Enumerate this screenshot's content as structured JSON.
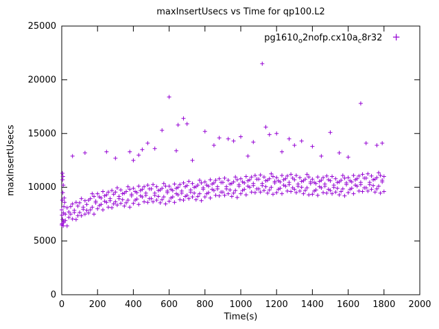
{
  "page": {
    "background": "#ffffff"
  },
  "title": "maxInsertUsecs vs Time for qp100.L2",
  "legend": {
    "label_full": "pg1610_o2nofp.cx10a_c8r32",
    "parts": [
      "pg1610",
      "o",
      "2nofp.cx10a",
      "c",
      "8r32"
    ],
    "marker": "+",
    "color": "#9400d3"
  },
  "axes": {
    "x": {
      "label": "Time(s)",
      "min": 0,
      "max": 2000,
      "ticks": [
        0,
        200,
        400,
        600,
        800,
        1000,
        1200,
        1400,
        1600,
        1800,
        2000
      ]
    },
    "y": {
      "label": "maxInsertUsecs",
      "min": 0,
      "max": 25000,
      "ticks": [
        0,
        5000,
        10000,
        15000,
        20000,
        25000
      ]
    }
  },
  "chart_data": {
    "type": "scatter",
    "title": "maxInsertUsecs vs Time for qp100.L2",
    "xlabel": "Time(s)",
    "ylabel": "maxInsertUsecs",
    "xlim": [
      0,
      2000
    ],
    "ylim": [
      0,
      25000
    ],
    "legend_label": "pg1610_o2nofp.cx10a_c8r32",
    "marker": "plus",
    "color": "#9400d3",
    "points_xyy": [
      [
        0,
        6500,
        7900
      ],
      [
        10,
        7600,
        6800
      ],
      [
        20,
        6900,
        7500
      ],
      [
        30,
        8100,
        6400
      ],
      [
        40,
        7200,
        7700
      ],
      [
        50,
        8200,
        7500
      ],
      [
        60,
        7050,
        8450
      ],
      [
        70,
        7850,
        7650
      ],
      [
        80,
        8600,
        7000
      ],
      [
        90,
        7350,
        8250
      ],
      [
        100,
        8550,
        7650
      ],
      [
        110,
        7350,
        8950
      ],
      [
        120,
        8150,
        7950
      ],
      [
        130,
        8750,
        7500
      ],
      [
        140,
        7850,
        8400
      ],
      [
        150,
        8800,
        7600
      ],
      [
        160,
        7900,
        8950
      ],
      [
        170,
        9400,
        8150
      ],
      [
        180,
        7500,
        9150
      ],
      [
        190,
        8700,
        8550
      ],
      [
        200,
        8000,
        9400
      ],
      [
        210,
        9100,
        8300
      ],
      [
        220,
        8400,
        9000
      ],
      [
        230,
        9600,
        7900
      ],
      [
        240,
        8700,
        9200
      ],
      [
        250,
        9300,
        8600
      ],
      [
        260,
        8150,
        9550
      ],
      [
        270,
        8950,
        8750
      ],
      [
        280,
        9700,
        8100
      ],
      [
        290,
        8450,
        9350
      ],
      [
        300,
        9550,
        8650
      ],
      [
        310,
        8350,
        9950
      ],
      [
        320,
        9150,
        8950
      ],
      [
        330,
        9750,
        8500
      ],
      [
        340,
        8850,
        9400
      ],
      [
        350,
        9450,
        8250
      ],
      [
        360,
        8550,
        9600
      ],
      [
        370,
        10050,
        8800
      ],
      [
        380,
        8150,
        9800
      ],
      [
        390,
        9350,
        9200
      ],
      [
        400,
        8500,
        9900
      ],
      [
        410,
        9600,
        8800
      ],
      [
        420,
        8900,
        9500
      ],
      [
        430,
        10100,
        8400
      ],
      [
        440,
        9200,
        9700
      ],
      [
        450,
        9800,
        9100
      ],
      [
        460,
        8650,
        10050
      ],
      [
        470,
        9450,
        9250
      ],
      [
        480,
        10200,
        8600
      ],
      [
        490,
        8950,
        9850
      ],
      [
        500,
        9850,
        8950
      ],
      [
        510,
        8650,
        10250
      ],
      [
        520,
        9450,
        9250
      ],
      [
        530,
        10050,
        8800
      ],
      [
        540,
        9150,
        9700
      ],
      [
        550,
        9750,
        8550
      ],
      [
        560,
        8850,
        9900
      ],
      [
        570,
        10350,
        9100
      ],
      [
        580,
        8450,
        10100
      ],
      [
        590,
        9650,
        9500
      ],
      [
        600,
        8700,
        10100
      ],
      [
        610,
        9800,
        9000
      ],
      [
        620,
        9100,
        9700
      ],
      [
        630,
        10300,
        8600
      ],
      [
        640,
        9400,
        9900
      ],
      [
        650,
        10000,
        9300
      ],
      [
        660,
        8850,
        10250
      ],
      [
        670,
        9650,
        9450
      ],
      [
        680,
        10400,
        8800
      ],
      [
        690,
        9150,
        10050
      ],
      [
        700,
        10150,
        9250
      ],
      [
        710,
        8950,
        10550
      ],
      [
        720,
        9750,
        9550
      ],
      [
        730,
        10350,
        9100
      ],
      [
        740,
        9450,
        10000
      ],
      [
        750,
        10050,
        8850
      ],
      [
        760,
        9150,
        10200
      ],
      [
        770,
        10650,
        9400
      ],
      [
        780,
        8750,
        10400
      ],
      [
        790,
        9950,
        9800
      ],
      [
        800,
        9100,
        10500
      ],
      [
        810,
        10200,
        9400
      ],
      [
        820,
        9500,
        10100
      ],
      [
        830,
        10700,
        9000
      ],
      [
        840,
        9800,
        10300
      ],
      [
        850,
        10400,
        9700
      ],
      [
        860,
        9250,
        10650
      ],
      [
        870,
        10050,
        9850
      ],
      [
        880,
        10800,
        9200
      ],
      [
        890,
        9550,
        10450
      ],
      [
        900,
        10450,
        9550
      ],
      [
        910,
        9250,
        10850
      ],
      [
        920,
        10050,
        9850
      ],
      [
        930,
        10650,
        9400
      ],
      [
        940,
        9750,
        10300
      ],
      [
        950,
        10350,
        9150
      ],
      [
        960,
        9450,
        10500
      ],
      [
        970,
        10950,
        9700
      ],
      [
        980,
        9050,
        10700
      ],
      [
        990,
        10250,
        10100
      ],
      [
        1000,
        9400,
        10800
      ],
      [
        1010,
        10500,
        9700
      ],
      [
        1020,
        9800,
        10400
      ],
      [
        1030,
        11000,
        9300
      ],
      [
        1040,
        10100,
        10600
      ],
      [
        1050,
        10700,
        10000
      ],
      [
        1060,
        9550,
        10950
      ],
      [
        1070,
        10350,
        10150
      ],
      [
        1080,
        11100,
        9500
      ],
      [
        1090,
        9850,
        10750
      ],
      [
        1100,
        10750,
        9850
      ],
      [
        1110,
        9550,
        11150
      ],
      [
        1120,
        10350,
        10150
      ],
      [
        1130,
        10950,
        9700
      ],
      [
        1140,
        10050,
        10600
      ],
      [
        1150,
        10650,
        9450
      ],
      [
        1160,
        9750,
        10800
      ],
      [
        1170,
        11250,
        10000
      ],
      [
        1180,
        9350,
        11000
      ],
      [
        1190,
        10550,
        10400
      ],
      [
        1200,
        9500,
        10900
      ],
      [
        1210,
        10600,
        9800
      ],
      [
        1220,
        9900,
        10500
      ],
      [
        1230,
        11100,
        9400
      ],
      [
        1240,
        10200,
        10700
      ],
      [
        1250,
        10800,
        10100
      ],
      [
        1260,
        9650,
        11050
      ],
      [
        1270,
        10450,
        10250
      ],
      [
        1280,
        11200,
        9600
      ],
      [
        1290,
        9950,
        10850
      ],
      [
        1300,
        10700,
        9800
      ],
      [
        1310,
        9500,
        11100
      ],
      [
        1320,
        10300,
        10100
      ],
      [
        1330,
        10900,
        9650
      ],
      [
        1340,
        10000,
        10550
      ],
      [
        1350,
        10600,
        9400
      ],
      [
        1360,
        9700,
        10750
      ],
      [
        1370,
        11200,
        9950
      ],
      [
        1380,
        9300,
        10950
      ],
      [
        1390,
        10500,
        10350
      ],
      [
        1400,
        9350,
        10750
      ],
      [
        1410,
        10450,
        9650
      ],
      [
        1420,
        9750,
        10350
      ],
      [
        1430,
        10950,
        9250
      ],
      [
        1440,
        10050,
        10550
      ],
      [
        1450,
        10650,
        9950
      ],
      [
        1460,
        9500,
        10900
      ],
      [
        1470,
        10300,
        10100
      ],
      [
        1480,
        11050,
        9450
      ],
      [
        1490,
        9800,
        10700
      ],
      [
        1500,
        10600,
        9700
      ],
      [
        1510,
        9400,
        11000
      ],
      [
        1520,
        10200,
        10000
      ],
      [
        1530,
        10800,
        9550
      ],
      [
        1540,
        9900,
        10450
      ],
      [
        1550,
        10500,
        9300
      ],
      [
        1560,
        9600,
        10650
      ],
      [
        1570,
        11100,
        9850
      ],
      [
        1580,
        9200,
        10850
      ],
      [
        1590,
        10400,
        10250
      ],
      [
        1600,
        9500,
        10900
      ],
      [
        1610,
        10600,
        9800
      ],
      [
        1620,
        9900,
        10500
      ],
      [
        1630,
        11100,
        9400
      ],
      [
        1640,
        10200,
        10700
      ],
      [
        1650,
        10800,
        10100
      ],
      [
        1660,
        9650,
        11050
      ],
      [
        1670,
        10450,
        10250
      ],
      [
        1680,
        11200,
        9600
      ],
      [
        1690,
        9950,
        10850
      ],
      [
        1700,
        10850,
        9950
      ],
      [
        1710,
        9650,
        11250
      ],
      [
        1720,
        10450,
        10250
      ],
      [
        1730,
        11050,
        9800
      ],
      [
        1740,
        10150,
        10700
      ],
      [
        1750,
        10750,
        9550
      ],
      [
        1760,
        9850,
        10900
      ],
      [
        1770,
        11350,
        10100
      ],
      [
        1780,
        9450,
        11100
      ],
      [
        1790,
        10650,
        10500
      ],
      [
        1800,
        9600,
        11000
      ]
    ],
    "start_cluster": [
      [
        1,
        7400
      ],
      [
        2,
        6600
      ],
      [
        3,
        8800
      ],
      [
        4,
        11300
      ],
      [
        5,
        7000
      ],
      [
        5,
        10700
      ],
      [
        6,
        9500
      ],
      [
        7,
        11000
      ],
      [
        8,
        6400
      ],
      [
        9,
        10200
      ],
      [
        10,
        6700
      ],
      [
        12,
        8200
      ],
      [
        14,
        9000
      ],
      [
        16,
        8600
      ]
    ],
    "outliers": [
      [
        60,
        12900
      ],
      [
        130,
        13200
      ],
      [
        250,
        13300
      ],
      [
        300,
        12700
      ],
      [
        380,
        13300
      ],
      [
        400,
        12500
      ],
      [
        430,
        13000
      ],
      [
        450,
        13500
      ],
      [
        480,
        14100
      ],
      [
        520,
        13600
      ],
      [
        560,
        15300
      ],
      [
        600,
        18400
      ],
      [
        640,
        13400
      ],
      [
        650,
        15800
      ],
      [
        680,
        16400
      ],
      [
        700,
        15900
      ],
      [
        730,
        12500
      ],
      [
        800,
        15200
      ],
      [
        850,
        13900
      ],
      [
        880,
        14600
      ],
      [
        930,
        14500
      ],
      [
        960,
        14300
      ],
      [
        1000,
        14700
      ],
      [
        1040,
        12900
      ],
      [
        1070,
        14200
      ],
      [
        1120,
        21500
      ],
      [
        1140,
        15600
      ],
      [
        1160,
        14900
      ],
      [
        1200,
        15000
      ],
      [
        1230,
        13300
      ],
      [
        1270,
        14500
      ],
      [
        1300,
        13900
      ],
      [
        1340,
        14300
      ],
      [
        1400,
        13800
      ],
      [
        1450,
        12900
      ],
      [
        1500,
        15100
      ],
      [
        1550,
        13200
      ],
      [
        1600,
        12800
      ],
      [
        1670,
        17800
      ],
      [
        1700,
        14100
      ],
      [
        1760,
        13900
      ],
      [
        1790,
        14100
      ]
    ]
  }
}
